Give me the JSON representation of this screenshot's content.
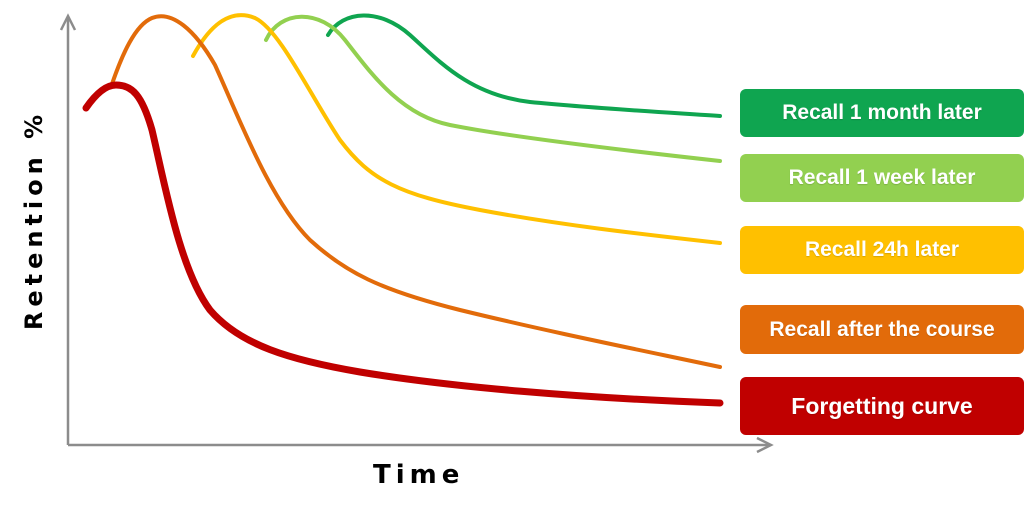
{
  "axes": {
    "x_label": "Time",
    "y_label": "Retention %"
  },
  "series": [
    {
      "key": "month",
      "label": "Recall 1 month later",
      "color": "#0fa550"
    },
    {
      "key": "week",
      "label": "Recall 1 week later",
      "color": "#92d050"
    },
    {
      "key": "day",
      "label": "Recall 24h later",
      "color": "#ffc000"
    },
    {
      "key": "course",
      "label": "Recall after the course",
      "color": "#e26b0a"
    },
    {
      "key": "forgetting",
      "label": "Forgetting curve",
      "color": "#c00000"
    }
  ],
  "axis_color": "#8c8c8c"
}
